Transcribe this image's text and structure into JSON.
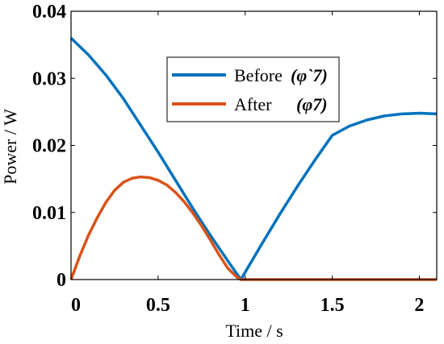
{
  "chart_data": {
    "type": "line",
    "xlabel": "Time / s",
    "ylabel": "Power / W",
    "xlim": [
      0,
      2.1
    ],
    "ylim": [
      0,
      0.04
    ],
    "x_ticks": [
      "0",
      "0.5",
      "1",
      "1.5",
      "2"
    ],
    "x_tick_values": [
      0,
      0.5,
      1,
      1.5,
      2
    ],
    "y_ticks": [
      "0",
      "0.01",
      "0.02",
      "0.03",
      "0.04"
    ],
    "y_tick_values": [
      0,
      0.01,
      0.02,
      0.03,
      0.04
    ],
    "grid": false,
    "legend_position": "top-right",
    "series": [
      {
        "name": "Before",
        "symbol": "(φ`7)",
        "color": "#0072BD",
        "x": [
          0,
          0.1,
          0.2,
          0.3,
          0.4,
          0.5,
          0.6,
          0.7,
          0.8,
          0.9,
          0.975,
          1.1,
          1.2,
          1.3,
          1.4,
          1.5,
          1.6,
          1.7,
          1.8,
          1.9,
          2.0,
          2.1
        ],
        "y": [
          0.036,
          0.0335,
          0.0305,
          0.027,
          0.023,
          0.019,
          0.0148,
          0.0106,
          0.0066,
          0.0028,
          0.0,
          0.0055,
          0.0098,
          0.0139,
          0.0178,
          0.0215,
          0.0229,
          0.0238,
          0.0244,
          0.0247,
          0.0248,
          0.0247
        ]
      },
      {
        "name": "After",
        "symbol": "(φ7)",
        "color": "#D95319",
        "x": [
          0,
          0.05,
          0.1,
          0.15,
          0.2,
          0.25,
          0.3,
          0.35,
          0.4,
          0.45,
          0.5,
          0.55,
          0.6,
          0.65,
          0.7,
          0.75,
          0.8,
          0.85,
          0.9,
          0.95,
          0.975,
          1.0,
          1.5,
          2.0,
          2.1
        ],
        "y": [
          0.0,
          0.0035,
          0.0066,
          0.0092,
          0.0115,
          0.0133,
          0.0145,
          0.0151,
          0.0153,
          0.0152,
          0.0148,
          0.0141,
          0.013,
          0.0116,
          0.0099,
          0.008,
          0.0059,
          0.0037,
          0.0017,
          0.0004,
          0.0,
          0.0,
          0.0,
          0.0,
          0.0
        ]
      }
    ]
  }
}
